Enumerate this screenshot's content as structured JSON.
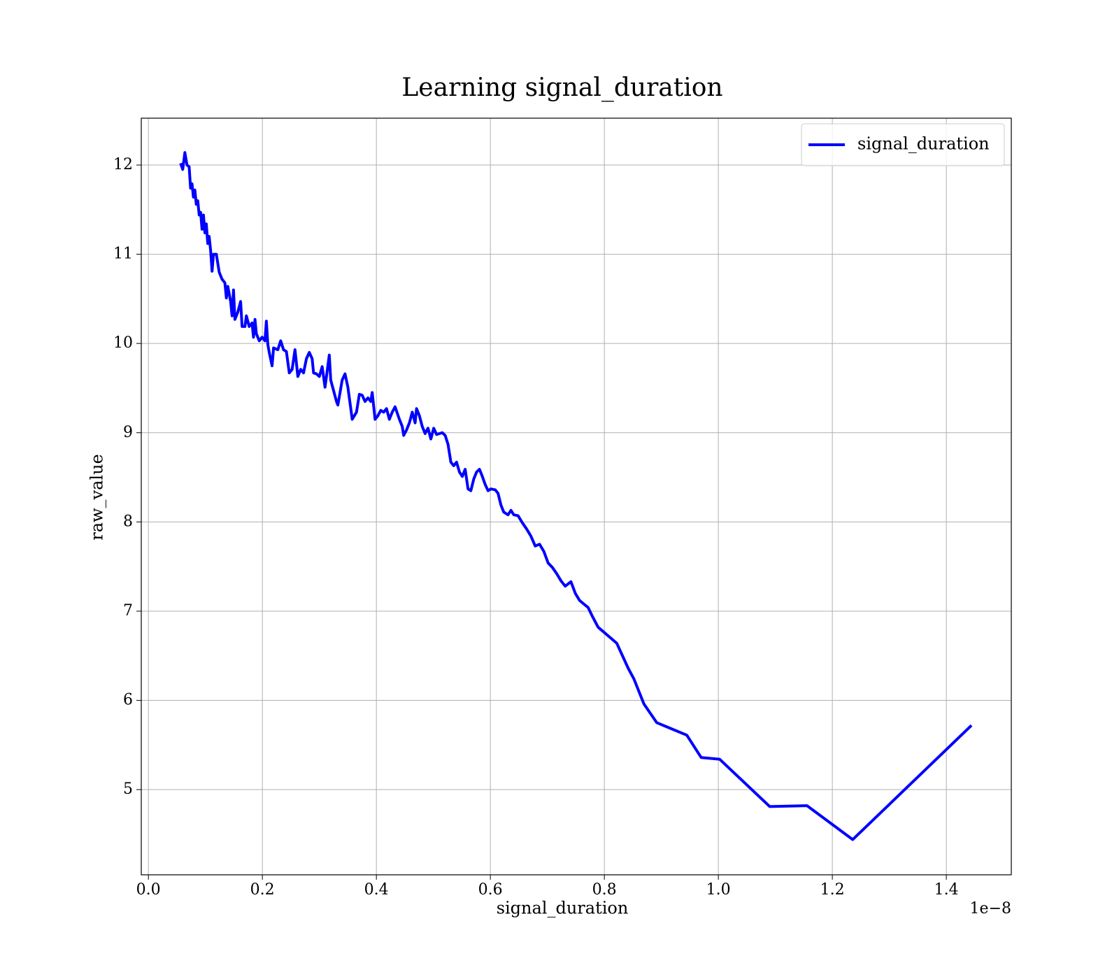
{
  "chart_data": {
    "type": "line",
    "title": "Learning signal_duration",
    "xlabel": "signal_duration",
    "ylabel": "raw_value",
    "x_offset_label": "1e−8",
    "xlim": [
      -0.0125,
      1.514
    ],
    "ylim": [
      4.045,
      12.525
    ],
    "xticks": [
      {
        "value": 0,
        "label": "0.0"
      },
      0.2,
      0.4,
      0.6,
      0.8,
      {
        "value": 1,
        "label": "1.0"
      },
      1.2,
      1.4
    ],
    "yticks": [
      5,
      6,
      7,
      8,
      9,
      10,
      11,
      12
    ],
    "grid": true,
    "legend": "upper right",
    "x": [
      0.0565,
      0.0602,
      0.064,
      0.0677,
      0.0715,
      0.074,
      0.0765,
      0.079,
      0.0815,
      0.084,
      0.0866,
      0.0891,
      0.0916,
      0.0941,
      0.0966,
      0.0991,
      0.1016,
      0.1041,
      0.1066,
      0.1092,
      0.1117,
      0.1142,
      0.1192,
      0.1242,
      0.1292,
      0.1342,
      0.1368,
      0.1393,
      0.1443,
      0.1468,
      0.1493,
      0.1518,
      0.1568,
      0.1618,
      0.1644,
      0.1694,
      0.1719,
      0.1769,
      0.1819,
      0.1844,
      0.187,
      0.1894,
      0.1945,
      0.1995,
      0.2045,
      0.207,
      0.2095,
      0.212,
      0.217,
      0.2196,
      0.2271,
      0.2321,
      0.2371,
      0.2421,
      0.2472,
      0.2522,
      0.2572,
      0.2622,
      0.2672,
      0.2722,
      0.2773,
      0.2823,
      0.2873,
      0.2898,
      0.2948,
      0.2999,
      0.3049,
      0.3099,
      0.3149,
      0.3174,
      0.3199,
      0.325,
      0.33,
      0.3325,
      0.34,
      0.345,
      0.35,
      0.3551,
      0.3576,
      0.3651,
      0.3701,
      0.3751,
      0.3801,
      0.3852,
      0.3902,
      0.3927,
      0.3977,
      0.4027,
      0.4077,
      0.4128,
      0.4178,
      0.4228,
      0.4278,
      0.4328,
      0.4404,
      0.4454,
      0.4479,
      0.4529,
      0.4579,
      0.463,
      0.468,
      0.4705,
      0.4755,
      0.4805,
      0.4855,
      0.4906,
      0.4956,
      0.5006,
      0.5056,
      0.5156,
      0.5207,
      0.5257,
      0.5307,
      0.5357,
      0.5407,
      0.5457,
      0.5508,
      0.5558,
      0.5608,
      0.5658,
      0.5708,
      0.5759,
      0.5809,
      0.5859,
      0.5909,
      0.5959,
      0.6009,
      0.6085,
      0.6135,
      0.6185,
      0.6235,
      0.631,
      0.6361,
      0.6411,
      0.6486,
      0.6561,
      0.6637,
      0.6712,
      0.6787,
      0.6863,
      0.6938,
      0.7013,
      0.7088,
      0.7164,
      0.7239,
      0.7314,
      0.7414,
      0.749,
      0.7565,
      0.764,
      0.7716,
      0.7791,
      0.7891,
      0.8218,
      0.8318,
      0.8418,
      0.8519,
      0.8594,
      0.8694,
      0.892,
      0.9146,
      0.9447,
      0.9698,
      1.0024,
      1.0902,
      1.1555,
      1.2358,
      1.4441
    ],
    "series": [
      {
        "name": "signal_duration",
        "color": "#0000ff",
        "values": [
          12.02,
          11.95,
          12.14,
          12.0,
          11.98,
          11.74,
          11.79,
          11.64,
          11.72,
          11.56,
          11.6,
          11.44,
          11.47,
          11.28,
          11.44,
          11.24,
          11.34,
          11.12,
          11.2,
          11.04,
          10.81,
          11.0,
          11.0,
          10.8,
          10.72,
          10.68,
          10.51,
          10.64,
          10.47,
          10.31,
          10.6,
          10.27,
          10.35,
          10.47,
          10.19,
          10.19,
          10.31,
          10.19,
          10.23,
          10.07,
          10.27,
          10.11,
          10.03,
          10.07,
          10.03,
          10.25,
          9.99,
          9.9,
          9.75,
          9.95,
          9.93,
          10.03,
          9.93,
          9.91,
          9.67,
          9.71,
          9.93,
          9.63,
          9.71,
          9.67,
          9.83,
          9.9,
          9.83,
          9.67,
          9.66,
          9.63,
          9.74,
          9.51,
          9.75,
          9.87,
          9.59,
          9.47,
          9.35,
          9.31,
          9.59,
          9.66,
          9.51,
          9.27,
          9.15,
          9.23,
          9.43,
          9.42,
          9.35,
          9.39,
          9.35,
          9.45,
          9.15,
          9.19,
          9.25,
          9.23,
          9.27,
          9.15,
          9.23,
          9.29,
          9.15,
          9.07,
          8.97,
          9.03,
          9.11,
          9.23,
          9.11,
          9.27,
          9.19,
          9.07,
          8.99,
          9.05,
          8.93,
          9.05,
          8.98,
          9.0,
          8.97,
          8.87,
          8.67,
          8.63,
          8.67,
          8.56,
          8.51,
          8.59,
          8.37,
          8.35,
          8.48,
          8.56,
          8.59,
          8.51,
          8.42,
          8.35,
          8.37,
          8.36,
          8.32,
          8.19,
          8.11,
          8.08,
          8.13,
          8.08,
          8.07,
          7.99,
          7.92,
          7.84,
          7.73,
          7.75,
          7.67,
          7.54,
          7.49,
          7.42,
          7.34,
          7.28,
          7.33,
          7.2,
          7.12,
          7.08,
          7.04,
          6.94,
          6.82,
          6.64,
          6.5,
          6.36,
          6.24,
          6.12,
          5.96,
          5.75,
          5.69,
          5.61,
          5.36,
          5.34,
          4.81,
          4.82,
          4.44,
          5.72
        ]
      }
    ]
  }
}
